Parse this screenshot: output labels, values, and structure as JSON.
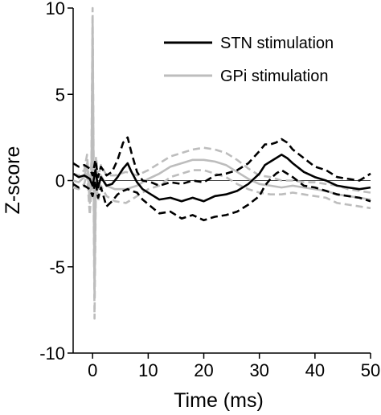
{
  "chart_data": {
    "type": "line",
    "xlabel": "Time (ms)",
    "ylabel": "Z-score",
    "xlim": [
      -3.5,
      50
    ],
    "ylim": [
      -10,
      10
    ],
    "xticks": [
      0,
      10,
      20,
      30,
      40,
      50
    ],
    "yticks": [
      -10,
      -5,
      0,
      5,
      10
    ],
    "grid": false,
    "legend_position": "top-right",
    "colors": {
      "stn": "#000000",
      "gpi": "#bdbdbd"
    },
    "legend": [
      "STN stimulation",
      "GPi stimulation"
    ],
    "series": [
      {
        "name": "STN stimulation",
        "style": "solid",
        "x": [
          -3.5,
          -2.5,
          -1.5,
          -0.5,
          0,
          0.5,
          1.0,
          1.5,
          2.5,
          3.5,
          4.5,
          5.5,
          6.3,
          7.0,
          8.0,
          9.0,
          10.5,
          12,
          14,
          16,
          18,
          20,
          22,
          24,
          26,
          28,
          30,
          31,
          32,
          33,
          34,
          35,
          36,
          38,
          40,
          42,
          44,
          46,
          48,
          50
        ],
        "y": [
          0.4,
          0.2,
          0.3,
          0.1,
          -0.3,
          0.6,
          -0.4,
          0.2,
          -0.3,
          -0.2,
          0.2,
          0.7,
          1.0,
          0.5,
          -0.1,
          -0.5,
          -0.8,
          -1.1,
          -1.0,
          -1.2,
          -1.0,
          -1.2,
          -0.9,
          -0.8,
          -0.6,
          -0.2,
          0.4,
          0.9,
          1.1,
          1.3,
          1.5,
          1.3,
          1.0,
          0.5,
          0.2,
          0.0,
          -0.3,
          -0.4,
          -0.5,
          -0.4
        ]
      },
      {
        "name": "STN stimulation (+SEM)",
        "style": "dashed",
        "x": [
          -3.5,
          -2.5,
          -1.5,
          -0.5,
          0,
          0.5,
          1.0,
          1.5,
          2.5,
          3.5,
          4.5,
          5.5,
          6.3,
          7.0,
          8.0,
          9.0,
          10.5,
          12,
          14,
          16,
          18,
          20,
          22,
          24,
          26,
          28,
          30,
          31,
          32,
          33,
          34,
          35,
          36,
          38,
          40,
          42,
          44,
          46,
          48,
          50
        ],
        "y": [
          1.0,
          0.8,
          0.9,
          0.7,
          0.3,
          1.2,
          0.2,
          0.8,
          0.3,
          0.5,
          1.2,
          2.2,
          2.5,
          1.6,
          0.5,
          0.0,
          -0.1,
          -0.3,
          -0.1,
          -0.2,
          0.0,
          -0.1,
          0.3,
          0.4,
          0.6,
          1.0,
          1.7,
          2.1,
          2.1,
          2.2,
          2.4,
          2.2,
          1.8,
          1.3,
          0.8,
          0.6,
          0.2,
          0.1,
          0.0,
          0.4
        ]
      },
      {
        "name": "STN stimulation (-SEM)",
        "style": "dashed",
        "x": [
          -3.5,
          -2.5,
          -1.5,
          -0.5,
          0,
          0.5,
          1.0,
          1.5,
          2.5,
          3.5,
          4.5,
          5.5,
          6.3,
          7.0,
          8.0,
          9.0,
          10.5,
          12,
          14,
          16,
          18,
          20,
          22,
          24,
          26,
          28,
          30,
          31,
          32,
          33,
          34,
          35,
          36,
          38,
          40,
          42,
          44,
          46,
          48,
          50
        ],
        "y": [
          -0.2,
          -0.4,
          -0.3,
          -0.5,
          -0.9,
          0.0,
          -1.0,
          -0.4,
          -1.5,
          -1.2,
          -0.8,
          -0.6,
          -0.5,
          -0.6,
          -0.7,
          -1.1,
          -1.5,
          -1.9,
          -1.8,
          -2.2,
          -2.0,
          -2.3,
          -2.1,
          -2.0,
          -1.8,
          -1.4,
          -0.9,
          -0.3,
          0.1,
          0.4,
          0.6,
          0.4,
          0.2,
          -0.3,
          -0.4,
          -0.6,
          -0.8,
          -0.9,
          -1.0,
          -1.2
        ]
      },
      {
        "name": "GPi stimulation",
        "style": "solid",
        "x": [
          -3.5,
          -2.5,
          -1.5,
          -1.0,
          -0.5,
          -0.2,
          0,
          0.15,
          0.35,
          0.6,
          1.0,
          1.5,
          2.5,
          4,
          6,
          8,
          10,
          12,
          14,
          16,
          18,
          20,
          22,
          24,
          26,
          28,
          30,
          32,
          34,
          36,
          38,
          40,
          42,
          44,
          46,
          48,
          50
        ],
        "y": [
          0.0,
          -0.1,
          0.2,
          1.0,
          -1.3,
          0.5,
          9.5,
          2.0,
          -6.8,
          0.8,
          -0.5,
          0.3,
          -0.3,
          -0.5,
          -0.5,
          -0.3,
          0.1,
          0.4,
          0.8,
          1.0,
          1.2,
          1.2,
          1.1,
          0.9,
          0.5,
          0.1,
          -0.2,
          -0.3,
          -0.4,
          -0.3,
          -0.4,
          -0.5,
          -0.6,
          -0.8,
          -0.9,
          -1.0,
          -1.1
        ]
      },
      {
        "name": "GPi stimulation (+SEM)",
        "style": "dashed",
        "x": [
          -3.5,
          -2.5,
          -1.5,
          -1.0,
          -0.5,
          -0.2,
          0,
          0.15,
          0.35,
          0.6,
          1.0,
          1.5,
          2.5,
          4,
          6,
          8,
          10,
          12,
          14,
          16,
          18,
          20,
          22,
          24,
          26,
          28,
          30,
          32,
          34,
          36,
          38,
          40,
          42,
          44,
          46,
          48,
          50
        ],
        "y": [
          0.4,
          0.3,
          0.6,
          1.5,
          -0.7,
          1.2,
          10.0,
          3.0,
          -5.5,
          1.4,
          0.2,
          0.9,
          0.3,
          0.3,
          0.5,
          0.3,
          0.6,
          1.0,
          1.4,
          1.6,
          1.8,
          1.9,
          1.8,
          1.6,
          1.2,
          0.7,
          0.3,
          0.2,
          0.0,
          0.0,
          -0.1,
          -0.1,
          -0.2,
          -0.3,
          -0.5,
          -0.6,
          -0.7
        ]
      },
      {
        "name": "GPi stimulation (-SEM)",
        "style": "dashed",
        "x": [
          -3.5,
          -2.5,
          -1.5,
          -1.0,
          -0.5,
          -0.2,
          0,
          0.15,
          0.35,
          0.6,
          1.0,
          1.5,
          2.5,
          4,
          6,
          8,
          10,
          12,
          14,
          16,
          18,
          20,
          22,
          24,
          26,
          28,
          30,
          32,
          34,
          36,
          38,
          40,
          42,
          44,
          46,
          48,
          50
        ],
        "y": [
          -0.4,
          -0.5,
          -0.2,
          0.4,
          -2.0,
          -0.4,
          8.5,
          0.8,
          -8.0,
          0.2,
          -1.2,
          -0.3,
          -0.9,
          -1.2,
          -1.3,
          -0.9,
          -0.5,
          -0.3,
          0.2,
          0.4,
          0.6,
          0.6,
          0.4,
          0.2,
          -0.2,
          -0.5,
          -0.7,
          -0.8,
          -0.8,
          -0.7,
          -0.8,
          -0.9,
          -1.0,
          -1.3,
          -1.4,
          -1.5,
          -1.6
        ]
      }
    ]
  }
}
